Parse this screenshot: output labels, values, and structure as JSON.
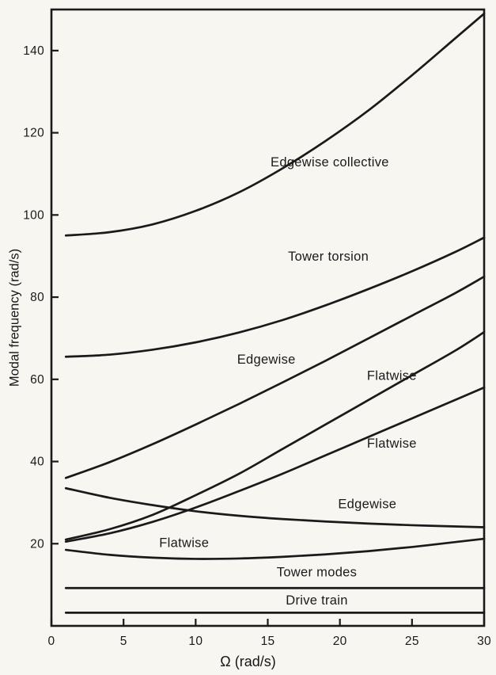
{
  "figure": {
    "background": "#f7f6f1",
    "ink": "#1a1a1a",
    "frame": true
  },
  "chart_data": {
    "type": "line",
    "title": "",
    "xlabel": "Ω (rad/s)",
    "ylabel": "Modal frequency (rad/s)",
    "xlim": [
      0,
      30
    ],
    "ylim": [
      0,
      150
    ],
    "x_ticks": [
      0,
      5,
      10,
      15,
      20,
      25,
      30
    ],
    "y_ticks": [
      20,
      40,
      60,
      80,
      100,
      120,
      140
    ],
    "grid": false,
    "legend": "inline-labels",
    "series": [
      {
        "name": "Edgewise collective",
        "label": {
          "text": "Edgewise collective",
          "x": 19.3,
          "y": 113
        },
        "x": [
          1,
          4,
          7,
          10,
          13,
          16,
          19,
          22,
          25,
          28,
          30
        ],
        "y": [
          95,
          95.8,
          97.7,
          101,
          105.5,
          111.3,
          118,
          125.5,
          134,
          143,
          149
        ]
      },
      {
        "name": "Tower torsion",
        "label": {
          "text": "Tower torsion",
          "x": 19.2,
          "y": 90
        },
        "x": [
          1,
          4,
          7,
          10,
          13,
          16,
          19,
          22,
          25,
          28,
          30
        ],
        "y": [
          65.5,
          66,
          67.2,
          69,
          71.4,
          74.4,
          78,
          82,
          86.3,
          91,
          94.5
        ]
      },
      {
        "name": "Edgewise",
        "label": {
          "text": "Edgewise",
          "x": 14.9,
          "y": 65
        },
        "x": [
          1,
          4,
          7,
          10,
          13,
          16,
          19,
          22,
          25,
          28,
          30
        ],
        "y": [
          36,
          39.8,
          44.2,
          49,
          54,
          59.2,
          64.5,
          70,
          75.5,
          81,
          85
        ]
      },
      {
        "name": "Flatwise",
        "label": {
          "text": "Flatwise",
          "x": 23.6,
          "y": 61
        },
        "x": [
          1,
          4,
          7,
          10,
          13,
          16,
          19,
          22,
          25,
          28,
          30
        ],
        "y": [
          21,
          23.5,
          27,
          31.8,
          37,
          43,
          49,
          55,
          61,
          67,
          71.5
        ]
      },
      {
        "name": "Flatwise",
        "label": {
          "text": "Flatwise",
          "x": 23.6,
          "y": 44.5
        },
        "x": [
          1,
          4,
          7,
          10,
          13,
          16,
          19,
          22,
          25,
          28,
          30
        ],
        "y": [
          20.5,
          22.5,
          25.3,
          28.8,
          32.8,
          37,
          41.5,
          46,
          50.5,
          55,
          58
        ]
      },
      {
        "name": "Edgewise",
        "label": {
          "text": "Edgewise",
          "x": 21.9,
          "y": 29.8
        },
        "x": [
          1,
          4,
          7,
          10,
          13,
          16,
          19,
          22,
          25,
          28,
          30
        ],
        "y": [
          33.5,
          31.2,
          29.4,
          27.9,
          26.8,
          26,
          25.4,
          24.9,
          24.5,
          24.2,
          24
        ]
      },
      {
        "name": "Flatwise",
        "label": {
          "text": "Flatwise",
          "x": 9.2,
          "y": 20.3
        },
        "x": [
          1,
          4,
          7,
          10,
          13,
          16,
          19,
          22,
          25,
          28,
          30
        ],
        "y": [
          18.5,
          17.3,
          16.6,
          16.3,
          16.4,
          16.8,
          17.4,
          18.2,
          19.2,
          20.4,
          21.2
        ]
      },
      {
        "name": "Tower modes",
        "label": {
          "text": "Tower modes",
          "x": 18.4,
          "y": 13.2
        },
        "x": [
          1,
          10,
          20,
          30
        ],
        "y": [
          9.2,
          9.2,
          9.2,
          9.2
        ]
      },
      {
        "name": "Drive train",
        "label": {
          "text": "Drive train",
          "x": 18.4,
          "y": 6.4
        },
        "x": [
          1,
          10,
          20,
          30
        ],
        "y": [
          3.2,
          3.2,
          3.2,
          3.2
        ]
      }
    ]
  }
}
